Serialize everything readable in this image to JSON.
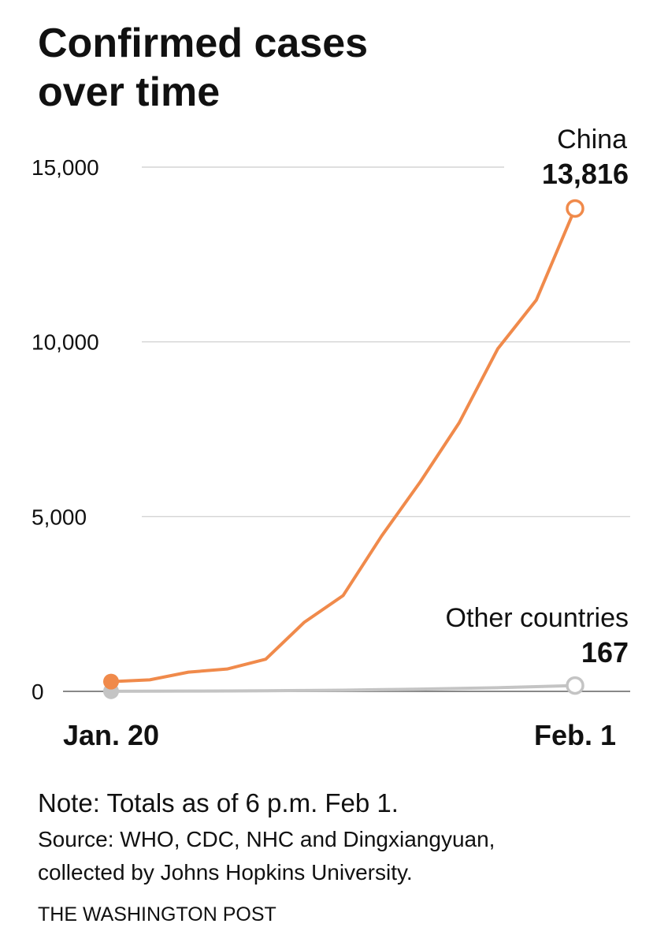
{
  "chart_data": {
    "type": "line",
    "title": [
      "Confirmed cases",
      "over time"
    ],
    "categories": [
      "Jan. 20",
      null,
      null,
      null,
      null,
      null,
      null,
      null,
      null,
      null,
      null,
      null,
      "Feb. 1"
    ],
    "series": [
      {
        "name": "China",
        "color": "#f08a4b",
        "values": [
          280,
          330,
          550,
          640,
          920,
          1980,
          2740,
          4450,
          6000,
          7680,
          9800,
          11200,
          13816
        ],
        "value_labels": [
          null,
          null,
          null,
          null,
          null,
          null,
          null,
          null,
          null,
          null,
          null,
          null,
          "13,816"
        ]
      },
      {
        "name": "Other countries",
        "color": "#c4c4c4",
        "values": [
          4,
          6,
          8,
          12,
          18,
          25,
          35,
          50,
          65,
          85,
          105,
          135,
          167
        ],
        "value_labels": [
          null,
          null,
          null,
          null,
          null,
          null,
          null,
          null,
          null,
          null,
          null,
          null,
          "167"
        ]
      }
    ],
    "ylim": [
      0,
      15000
    ],
    "yticks": [
      0,
      {
        "value": 5000,
        "label": "5,000"
      },
      {
        "value": 10000,
        "label": "10,000"
      },
      {
        "value": 15000,
        "label": "15,000"
      }
    ],
    "grid": true,
    "note": "Note: Totals as of 6 p.m. Feb 1.",
    "source": [
      "Source: WHO, CDC, NHC and Dingxiangyuan,",
      "collected by Johns Hopkins University."
    ],
    "credit": "THE WASHINGTON POST"
  }
}
